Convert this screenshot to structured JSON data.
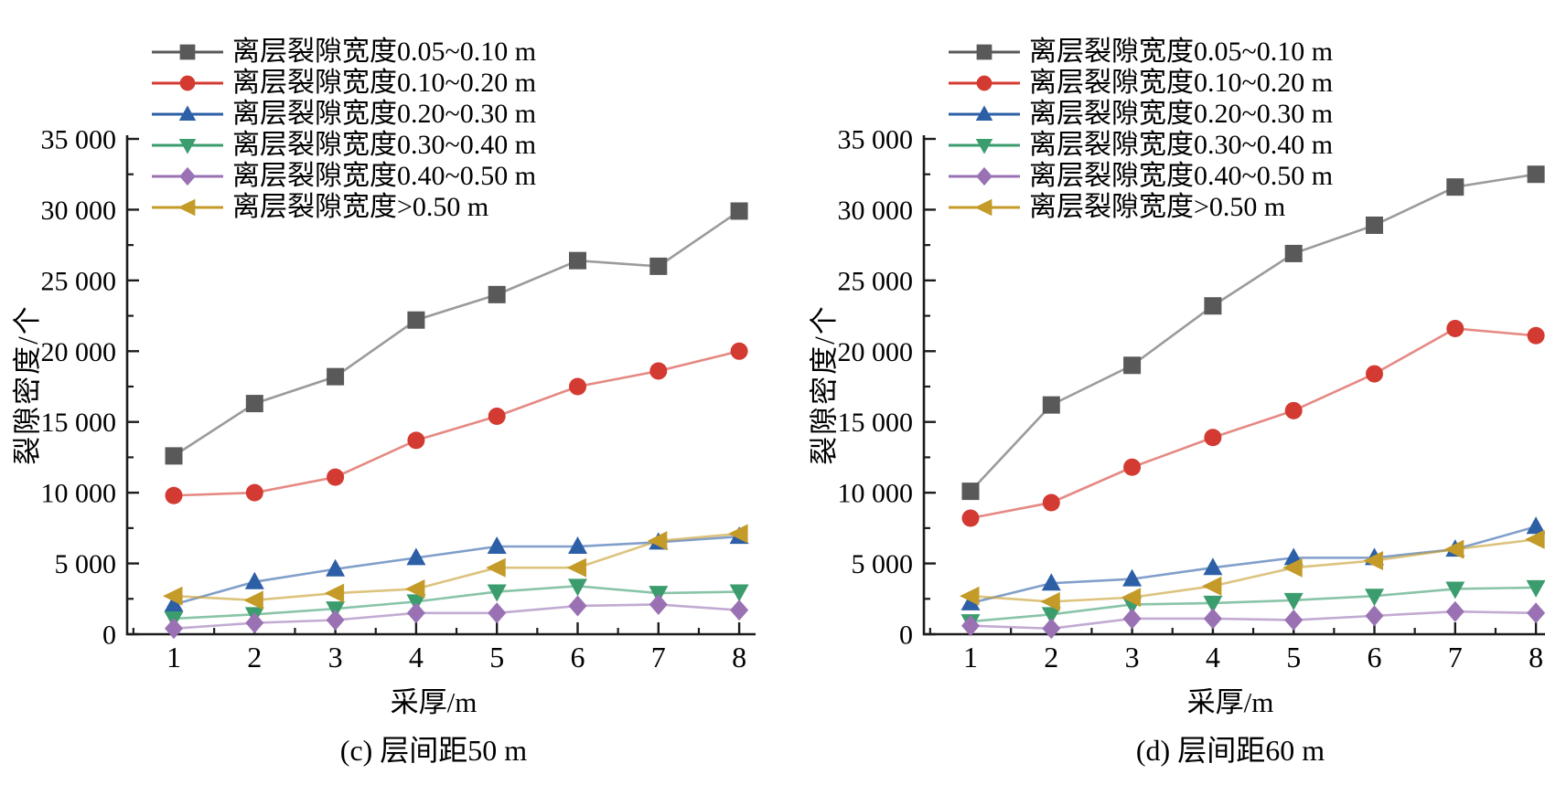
{
  "figure": {
    "background": "#ffffff",
    "text_color": "#000000",
    "axis_color": "#1c1c1c"
  },
  "chart_data": [
    {
      "type": "line",
      "title": "(c) 层间距50 m",
      "xlabel": "采厚/m",
      "ylabel": "裂隙密度/个",
      "x": [
        1,
        2,
        3,
        4,
        5,
        6,
        7,
        8
      ],
      "xlim": [
        0.42,
        8.2
      ],
      "ylim": [
        0,
        35000
      ],
      "y_major_step": 5000,
      "y_minor_step": 2500,
      "x_minor_step": 0.5,
      "grid": false,
      "legend_position": "top-left",
      "x_tick_labels": [
        "1",
        "2",
        "3",
        "4",
        "5",
        "6",
        "7",
        "8"
      ],
      "y_tick_labels": [
        "0",
        "5 000",
        "10 000",
        "15 000",
        "20 000",
        "25 000",
        "30 000",
        "35 000"
      ],
      "series": [
        {
          "name": "离层裂隙宽度0.05~0.10 m",
          "marker": "square",
          "color": "#595959",
          "values": [
            12600,
            16300,
            18200,
            22200,
            24000,
            26400,
            26000,
            29900
          ]
        },
        {
          "name": "离层裂隙宽度0.10~0.20 m",
          "marker": "circle",
          "color": "#d33a31",
          "values": [
            9800,
            10000,
            11100,
            13700,
            15400,
            17500,
            18600,
            20000
          ]
        },
        {
          "name": "离层裂隙宽度0.20~0.30 m",
          "marker": "triangle-up",
          "color": "#2d5fa6",
          "values": [
            2100,
            3700,
            4600,
            5400,
            6200,
            6200,
            6500,
            6900
          ]
        },
        {
          "name": "离层裂隙宽度0.30~0.40 m",
          "marker": "triangle-down",
          "color": "#3b9c6e",
          "values": [
            1100,
            1400,
            1800,
            2300,
            3000,
            3400,
            2900,
            3000
          ]
        },
        {
          "name": "离层裂隙宽度0.40~0.50 m",
          "marker": "diamond",
          "color": "#9a72b4",
          "values": [
            400,
            800,
            1000,
            1500,
            1500,
            2000,
            2100,
            1700
          ]
        },
        {
          "name": "离层裂隙宽度>0.50 m",
          "marker": "triangle-left",
          "color": "#c49b28",
          "values": [
            2700,
            2400,
            2900,
            3200,
            4700,
            4700,
            6600,
            7100
          ]
        }
      ]
    },
    {
      "type": "line",
      "title": "(d) 层间距60 m",
      "xlabel": "采厚/m",
      "ylabel": "裂隙密度/个",
      "x": [
        1,
        2,
        3,
        4,
        5,
        6,
        7,
        8
      ],
      "xlim": [
        0.42,
        8.2
      ],
      "ylim": [
        0,
        35000
      ],
      "y_major_step": 5000,
      "y_minor_step": 2500,
      "x_minor_step": 0.5,
      "grid": false,
      "legend_position": "top-left",
      "x_tick_labels": [
        "1",
        "2",
        "3",
        "4",
        "5",
        "6",
        "7",
        "8"
      ],
      "y_tick_labels": [
        "0",
        "5 000",
        "10 000",
        "15 000",
        "20 000",
        "25 000",
        "30 000",
        "35 000"
      ],
      "series": [
        {
          "name": "离层裂隙宽度0.05~0.10 m",
          "marker": "square",
          "color": "#595959",
          "values": [
            10100,
            16200,
            19000,
            23200,
            26900,
            28900,
            31600,
            32500
          ]
        },
        {
          "name": "离层裂隙宽度0.10~0.20 m",
          "marker": "circle",
          "color": "#d33a31",
          "values": [
            8200,
            9300,
            11800,
            13900,
            15800,
            18400,
            21600,
            21100
          ]
        },
        {
          "name": "离层裂隙宽度0.20~0.30 m",
          "marker": "triangle-up",
          "color": "#2d5fa6",
          "values": [
            2200,
            3600,
            3900,
            4700,
            5400,
            5400,
            6000,
            7600
          ]
        },
        {
          "name": "离层裂隙宽度0.30~0.40 m",
          "marker": "triangle-down",
          "color": "#3b9c6e",
          "values": [
            900,
            1400,
            2100,
            2200,
            2400,
            2700,
            3200,
            3300
          ]
        },
        {
          "name": "离层裂隙宽度0.40~0.50 m",
          "marker": "diamond",
          "color": "#9a72b4",
          "values": [
            600,
            400,
            1100,
            1100,
            1000,
            1300,
            1600,
            1500
          ]
        },
        {
          "name": "离层裂隙宽度>0.50 m",
          "marker": "triangle-left",
          "color": "#c49b28",
          "values": [
            2700,
            2300,
            2600,
            3400,
            4700,
            5200,
            6000,
            6700
          ]
        }
      ]
    }
  ]
}
